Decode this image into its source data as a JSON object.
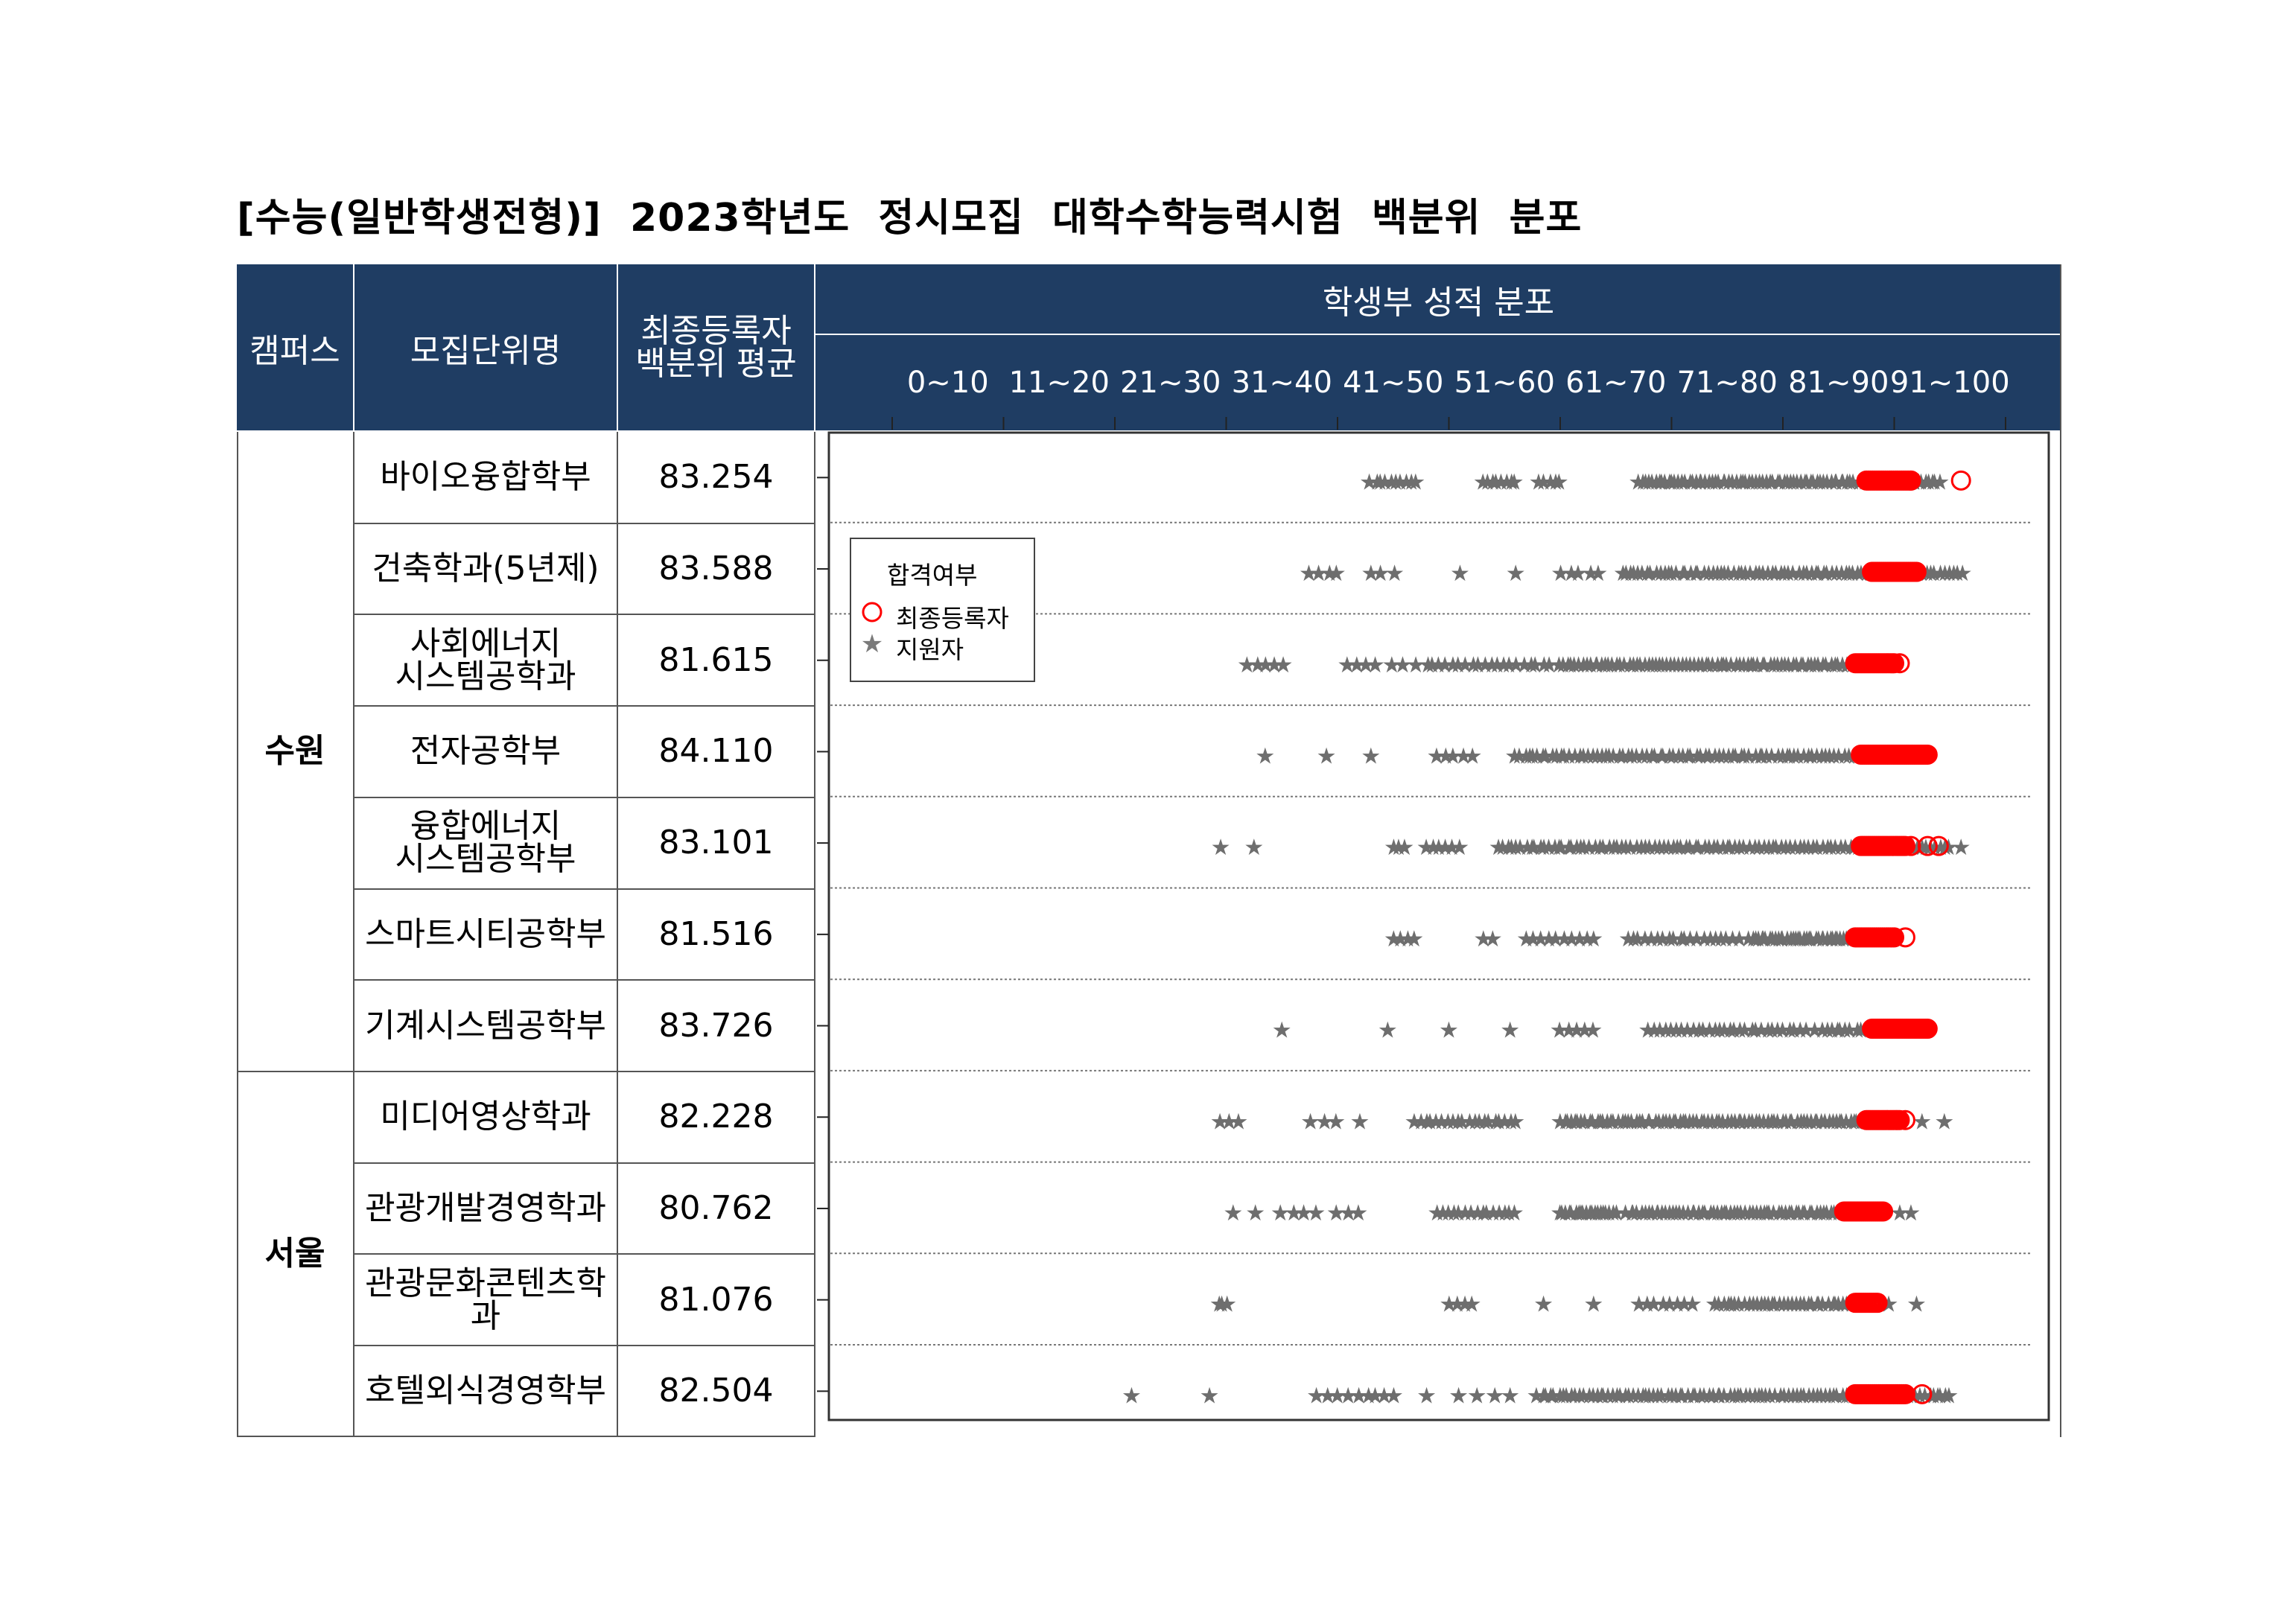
{
  "title": "[수능(일반학생전형)]  2023학년도  정시모집  대학수학능력시험  백분위  분포",
  "header": {
    "campus": "캠퍼스",
    "unit": "모집단위명",
    "avg_line1": "최종등록자",
    "avg_line2": "백분위 평균",
    "dist": "학생부 성적 분포",
    "ranges": [
      "0~10",
      "11~20",
      "21~30",
      "31~40",
      "41~50",
      "51~60",
      "61~70",
      "71~80",
      "81~90",
      "91~100"
    ]
  },
  "legend": {
    "title": "합격여부",
    "registrant": "최종등록자",
    "applicant": "지원자"
  },
  "campuses": [
    {
      "name": "수원",
      "rows": 7
    },
    {
      "name": "서울",
      "rows": 4
    }
  ],
  "rows": [
    {
      "name_lines": [
        "바이오융합학부"
      ],
      "avg": "83.254"
    },
    {
      "name_lines": [
        "건축학과(5년제)"
      ],
      "avg": "83.588"
    },
    {
      "name_lines": [
        "사회에너지",
        "시스템공학과"
      ],
      "avg": "81.615"
    },
    {
      "name_lines": [
        "전자공학부"
      ],
      "avg": "84.110"
    },
    {
      "name_lines": [
        "융합에너지",
        "시스템공학부"
      ],
      "avg": "83.101"
    },
    {
      "name_lines": [
        "스마트시티공학부"
      ],
      "avg": "81.516"
    },
    {
      "name_lines": [
        "기계시스템공학부"
      ],
      "avg": "83.726"
    },
    {
      "name_lines": [
        "미디어영상학과"
      ],
      "avg": "82.228"
    },
    {
      "name_lines": [
        "관광개발경영학과"
      ],
      "avg": "80.762"
    },
    {
      "name_lines": [
        "관광문화콘텐츠학과"
      ],
      "avg": "81.076"
    },
    {
      "name_lines": [
        "호텔외식경영학부"
      ],
      "avg": "82.504"
    }
  ],
  "colors": {
    "header_bg": "#1f3d63",
    "applicant_marker": "#6e6e6e",
    "registrant_marker": "#ff0000"
  },
  "chart_data": {
    "type": "scatter",
    "x_axis": "percentile",
    "xlim": [
      0,
      100
    ],
    "markers": {
      "applicant": "star",
      "registrant": "circle"
    },
    "series": [
      {
        "unit": "바이오융합학부",
        "applicant_clusters": [
          [
            43,
            47,
            10
          ],
          [
            53,
            56,
            8
          ],
          [
            58,
            60,
            5
          ],
          [
            67,
            94,
            90
          ]
        ],
        "registrant_range": [
          87.5,
          91.5
        ],
        "registrant_extra": [
          91.5,
          96
        ],
        "applicant_extra": [
          91.8
        ]
      },
      {
        "unit": "건축학과(5년제)",
        "applicant_clusters": [
          [
            37.5,
            40,
            4
          ],
          [
            43,
            45,
            3
          ],
          [
            51,
            51.5,
            1
          ],
          [
            56,
            56.5,
            1
          ],
          [
            60,
            63.5,
            5
          ],
          [
            65.5,
            96,
            80
          ]
        ],
        "registrant_range": [
          88.0,
          92.0
        ],
        "registrant_extra": [],
        "applicant_extra": []
      },
      {
        "unit": "사회에너지 시스템공학과",
        "applicant_clusters": [
          [
            32,
            35,
            5
          ],
          [
            41,
            43.5,
            4
          ],
          [
            45,
            47,
            3
          ],
          [
            48,
            59,
            20
          ],
          [
            60,
            87,
            80
          ]
        ],
        "registrant_range": [
          86.5,
          90.0
        ],
        "registrant_extra": [
          90.5
        ],
        "applicant_extra": []
      },
      {
        "unit": "전자공학부",
        "applicant_clusters": [
          [
            33.5,
            34,
            1
          ],
          [
            39,
            39.5,
            1
          ],
          [
            43,
            43.5,
            1
          ],
          [
            49,
            52,
            5
          ],
          [
            56,
            92,
            90
          ]
        ],
        "registrant_range": [
          87.0,
          93.0
        ],
        "registrant_extra": [],
        "applicant_extra": []
      },
      {
        "unit": "융합에너지 시스템공학부",
        "applicant_clusters": [
          [
            29.5,
            30,
            1
          ],
          [
            32.5,
            33,
            1
          ],
          [
            45,
            46,
            3
          ],
          [
            48,
            51,
            6
          ],
          [
            54.5,
            95,
            100
          ]
        ],
        "registrant_range": [
          87.0,
          91.0
        ],
        "registrant_extra": [
          91.5,
          93,
          94
        ],
        "applicant_extra": [
          96
        ]
      },
      {
        "unit": "스마트시티공학부",
        "applicant_clusters": [
          [
            45,
            47,
            4
          ],
          [
            53,
            54,
            2
          ],
          [
            57,
            63,
            10
          ],
          [
            66,
            76,
            20
          ],
          [
            77,
            87,
            40
          ]
        ],
        "registrant_range": [
          86.5,
          90.0
        ],
        "registrant_extra": [
          91
        ],
        "applicant_extra": []
      },
      {
        "unit": "기계시스템공학부",
        "applicant_clusters": [
          [
            35,
            35.5,
            1
          ],
          [
            44.5,
            45,
            1
          ],
          [
            50,
            50.5,
            1
          ],
          [
            55.5,
            56,
            1
          ],
          [
            60,
            63,
            5
          ],
          [
            68,
            82,
            30
          ],
          [
            83,
            87,
            10
          ]
        ],
        "registrant_range": [
          88.0,
          93.0
        ],
        "registrant_extra": [],
        "applicant_extra": []
      },
      {
        "unit": "미디어영상학과",
        "applicant_clusters": [
          [
            29.5,
            31,
            3
          ],
          [
            37.5,
            40,
            3
          ],
          [
            42,
            42.5,
            1
          ],
          [
            47,
            56,
            20
          ],
          [
            60,
            89,
            90
          ]
        ],
        "registrant_range": [
          87.5,
          90.5
        ],
        "registrant_extra": [
          91
        ],
        "applicant_extra": [
          92.5,
          94.5
        ]
      },
      {
        "unit": "관광개발경영학과",
        "applicant_clusters": [
          [
            30.5,
            32.5,
            2
          ],
          [
            35,
            38,
            4
          ],
          [
            40,
            42,
            3
          ],
          [
            49,
            56,
            15
          ],
          [
            60,
            65,
            20
          ],
          [
            66,
            85,
            60
          ]
        ],
        "registrant_range": [
          85.5,
          89.0
        ],
        "registrant_extra": [],
        "applicant_extra": [
          90.5,
          91.5
        ]
      },
      {
        "unit": "관광문화콘텐츠학과",
        "applicant_clusters": [
          [
            29.5,
            30,
            3
          ],
          [
            50,
            52,
            4
          ],
          [
            58.5,
            59,
            1
          ],
          [
            63,
            63.5,
            1
          ],
          [
            67,
            72,
            8
          ],
          [
            74,
            88,
            40
          ]
        ],
        "registrant_range": [
          86.5,
          88.5
        ],
        "registrant_extra": [],
        "applicant_extra": [
          89.5,
          92
        ]
      },
      {
        "unit": "호텔외식경영학부",
        "applicant_clusters": [
          [
            21.5,
            22,
            1
          ],
          [
            28.5,
            29,
            1
          ],
          [
            38,
            41,
            4
          ],
          [
            42,
            45,
            5
          ],
          [
            48,
            48.5,
            1
          ],
          [
            51,
            54,
            3
          ],
          [
            55.5,
            56,
            1
          ],
          [
            58,
            95,
            100
          ]
        ],
        "registrant_range": [
          86.5,
          91.0
        ],
        "registrant_extra": [
          92.5
        ],
        "applicant_extra": []
      }
    ]
  }
}
